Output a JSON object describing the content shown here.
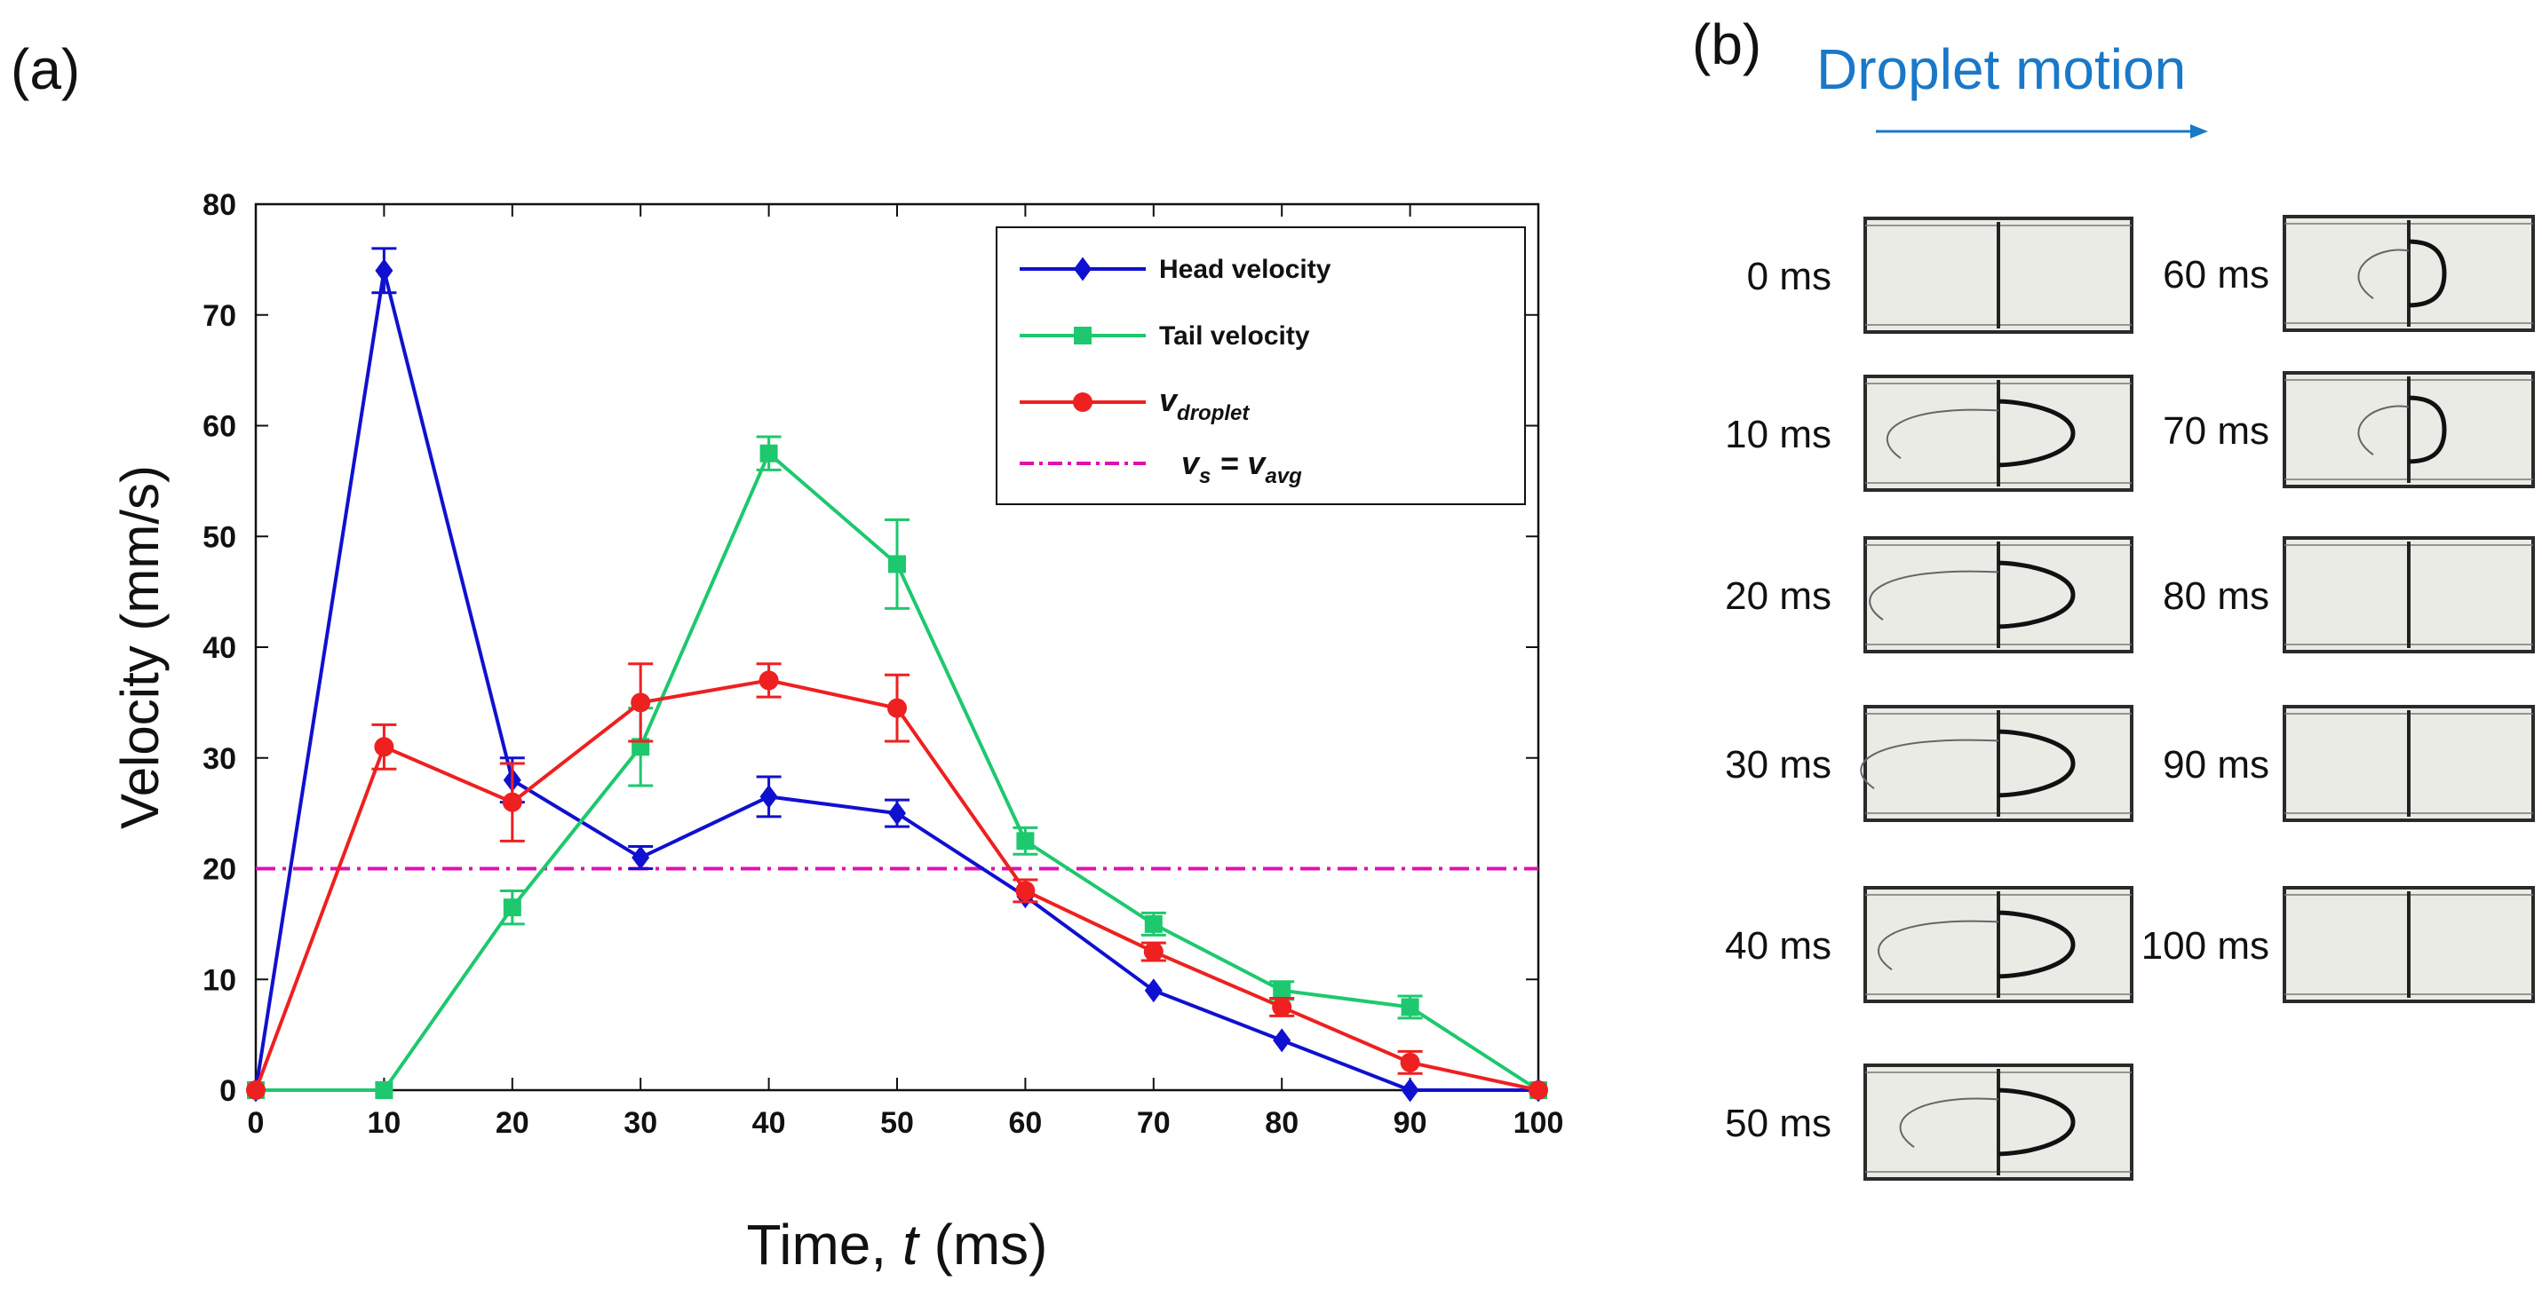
{
  "panel_a_label": "(a)",
  "panel_b_label": "(b)",
  "chart_data": {
    "type": "line",
    "title": "",
    "xlabel_prefix": "Time, ",
    "xlabel_var": "t",
    "xlabel_suffix": " (ms)",
    "ylabel": "Velocity (mm/s)",
    "xlim": [
      0,
      100
    ],
    "ylim": [
      0,
      80
    ],
    "x": [
      0,
      10,
      20,
      30,
      40,
      50,
      60,
      70,
      80,
      90,
      100
    ],
    "xticks": [
      "0",
      "10",
      "20",
      "30",
      "40",
      "50",
      "60",
      "70",
      "80",
      "90",
      "100"
    ],
    "yticks": [
      "0",
      "10",
      "20",
      "30",
      "40",
      "50",
      "60",
      "70",
      "80"
    ],
    "grid": false,
    "legend_position": "top-right",
    "series": [
      {
        "name": "Head velocity",
        "color": "#1010d0",
        "marker": "diamond",
        "values": [
          0,
          74,
          28,
          21,
          26.5,
          25,
          17.5,
          9,
          4.5,
          0,
          0
        ],
        "errors": [
          0,
          2,
          2,
          1,
          1.8,
          1.2,
          0,
          0,
          0,
          0,
          0
        ]
      },
      {
        "name": "Tail velocity",
        "color": "#1ec86e",
        "marker": "square",
        "values": [
          0,
          0,
          16.5,
          31,
          57.5,
          47.5,
          22.5,
          15,
          9,
          7.5,
          0
        ],
        "errors": [
          0,
          0,
          1.5,
          3.5,
          1.5,
          4,
          1.2,
          1,
          0.8,
          1,
          0
        ]
      },
      {
        "name": "v",
        "name_sub": "droplet",
        "color": "#ee2020",
        "marker": "circle",
        "values": [
          0,
          31,
          26,
          35,
          37,
          34.5,
          18,
          12.5,
          7.5,
          2.5,
          0
        ],
        "errors": [
          0,
          2,
          3.5,
          3.5,
          1.5,
          3,
          1,
          0.8,
          0.8,
          1,
          0
        ]
      }
    ],
    "reference_line": {
      "label_v": "v",
      "label_s_sub": "s",
      "label_eq": " = ",
      "label_avg_v": "v",
      "label_avg_sub": "avg",
      "value": 20,
      "color": "#e010b0"
    }
  },
  "panel_b": {
    "title": "Droplet motion",
    "title_color": "#1a78c8",
    "frames_left": [
      "0 ms",
      "10 ms",
      "20 ms",
      "30 ms",
      "40 ms",
      "50 ms"
    ],
    "frames_right": [
      "60 ms",
      "70 ms",
      "80 ms",
      "90 ms",
      "100 ms"
    ]
  }
}
